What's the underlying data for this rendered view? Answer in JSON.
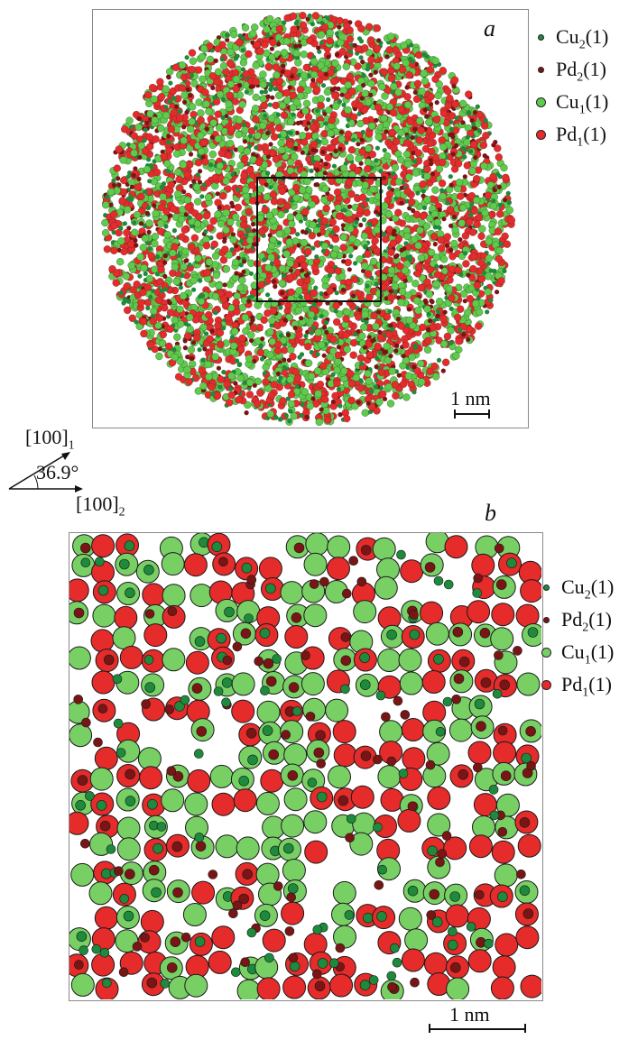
{
  "panel_a": {
    "label": "a",
    "scale_bar": "1 nm",
    "legend": [
      {
        "key": "Cu",
        "sub": "2",
        "suffix": "(1)",
        "color": "#1e8a3c",
        "kind": "small"
      },
      {
        "key": "Pd",
        "sub": "2",
        "suffix": "(1)",
        "color": "#7a1515",
        "kind": "small"
      },
      {
        "key": "Cu",
        "sub": "1",
        "suffix": "(1)",
        "color": "#5ccc4a",
        "kind": "large"
      },
      {
        "key": "Pd",
        "sub": "1",
        "suffix": "(1)",
        "color": "#e62b2b",
        "kind": "large"
      }
    ]
  },
  "orientation": {
    "direction_1": "[100]",
    "direction_1_sub": "1",
    "angle": "36.9°",
    "direction_2": "[100]",
    "direction_2_sub": "2"
  },
  "panel_b": {
    "label": "b",
    "scale_bar": "1 nm",
    "legend": [
      {
        "key": "Cu",
        "sub": "2",
        "suffix": "(1)",
        "color": "#1e8a3c",
        "kind": "small"
      },
      {
        "key": "Pd",
        "sub": "2",
        "suffix": "(1)",
        "color": "#7a1515",
        "kind": "small"
      },
      {
        "key": "Cu",
        "sub": "1",
        "suffix": "(1)",
        "color": "#78d065",
        "kind": "large"
      },
      {
        "key": "Pd",
        "sub": "1",
        "suffix": "(1)",
        "color": "#e62b2b",
        "kind": "large"
      }
    ]
  }
}
